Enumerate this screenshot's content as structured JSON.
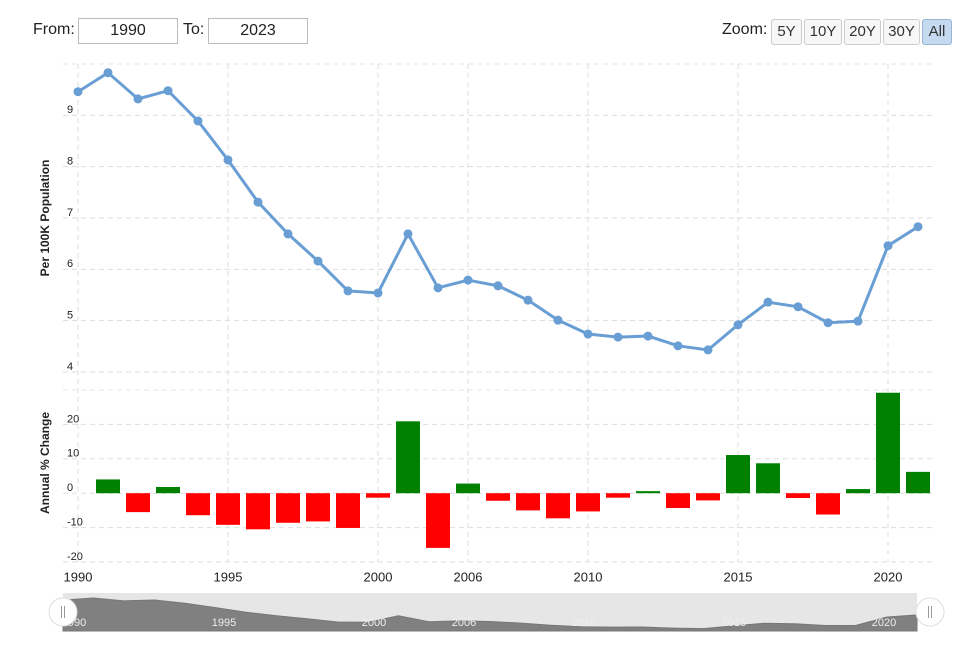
{
  "controls": {
    "from_label": "From:",
    "from": "1990",
    "to_label": "To:",
    "to": "2023",
    "zoom_label": "Zoom:",
    "zoom": [
      "5Y",
      "10Y",
      "20Y",
      "30Y",
      "All"
    ],
    "zoom_active": "All"
  },
  "chart_data": [
    {
      "type": "line",
      "y_label": "Per 100K Population",
      "color": "#699ed4",
      "categories": [
        "1990",
        null,
        null,
        null,
        null,
        "1995",
        null,
        null,
        null,
        null,
        "2000",
        null,
        null,
        "2006",
        null,
        null,
        null,
        "2010",
        null,
        null,
        null,
        null,
        "2015",
        null,
        null,
        null,
        null,
        "2020",
        null
      ],
      "values": [
        9.46,
        9.83,
        9.32,
        9.48,
        8.89,
        8.13,
        7.31,
        6.69,
        6.16,
        5.58,
        5.54,
        6.69,
        5.64,
        5.79,
        5.68,
        5.4,
        5.01,
        4.74,
        4.68,
        4.7,
        4.51,
        4.43,
        4.92,
        5.36,
        5.27,
        4.96,
        4.99,
        6.46,
        6.83
      ],
      "ylim": [
        4,
        10
      ],
      "yticks": [
        4,
        5,
        6,
        7,
        8,
        9
      ],
      "grid": true
    },
    {
      "type": "bar",
      "y_label": "Annual % Change",
      "positive_color": "#008000",
      "negative_color": "#ff0000",
      "categories": [
        "1990",
        null,
        null,
        null,
        null,
        "1995",
        null,
        null,
        null,
        null,
        "2000",
        null,
        null,
        "2006",
        null,
        null,
        null,
        "2010",
        null,
        null,
        null,
        null,
        "2015",
        null,
        null,
        null,
        null,
        "2020",
        null
      ],
      "values": [
        null,
        4.0,
        -5.5,
        1.8,
        -6.4,
        -9.2,
        -10.5,
        -8.6,
        -8.2,
        -10.1,
        -1.3,
        20.9,
        -15.9,
        2.8,
        -2.2,
        -5.0,
        -7.3,
        -5.3,
        -1.3,
        0.6,
        -4.3,
        -2.1,
        11.1,
        8.7,
        -1.4,
        -6.2,
        1.2,
        29.2,
        6.2
      ],
      "ylim": [
        -20,
        30
      ],
      "yticks": [
        -20,
        -10,
        0,
        10,
        20
      ],
      "grid": true
    }
  ]
}
